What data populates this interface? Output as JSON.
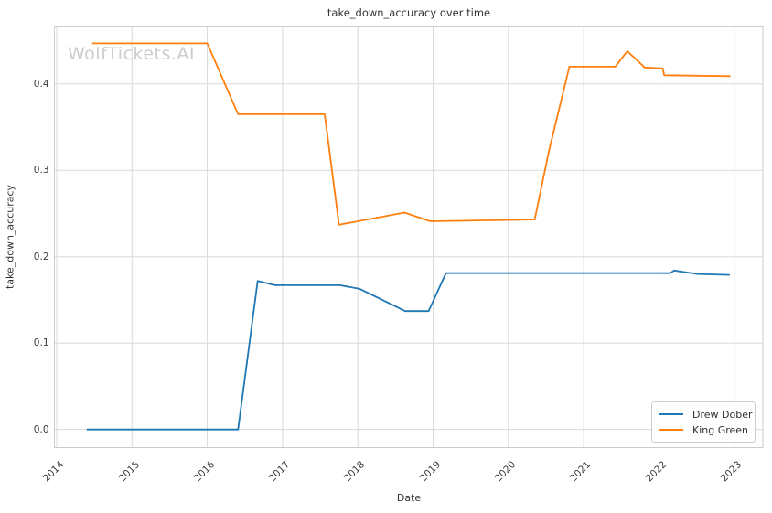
{
  "watermark": "WolfTickets.AI",
  "chart_data": {
    "type": "line",
    "title": "take_down_accuracy over time",
    "xlabel": "Date",
    "ylabel": "take_down_accuracy",
    "xlim": [
      2013.97,
      2023.38
    ],
    "ylim": [
      -0.021,
      0.467
    ],
    "x_ticks": [
      2014,
      2015,
      2016,
      2017,
      2018,
      2019,
      2020,
      2021,
      2022,
      2023
    ],
    "y_ticks": [
      0.0,
      0.1,
      0.2,
      0.3,
      0.4
    ],
    "grid": true,
    "legend_position": "lower right",
    "colors": {
      "grid": "#d9d9d9",
      "spine": "#cccccc",
      "text": "#3a3a3a",
      "watermark": "#cccccc",
      "background": "#ffffff"
    },
    "series": [
      {
        "name": "Drew Dober",
        "color": "#1f77b4",
        "points": [
          [
            2014.4,
            0.0
          ],
          [
            2016.41,
            0.0
          ],
          [
            2016.67,
            0.172
          ],
          [
            2016.9,
            0.167
          ],
          [
            2017.76,
            0.167
          ],
          [
            2018.02,
            0.163
          ],
          [
            2018.63,
            0.137
          ],
          [
            2018.94,
            0.137
          ],
          [
            2019.17,
            0.181
          ],
          [
            2022.15,
            0.181
          ],
          [
            2022.2,
            0.184
          ],
          [
            2022.51,
            0.18
          ],
          [
            2022.94,
            0.179
          ]
        ]
      },
      {
        "name": "King Green",
        "color": "#ff7f0e",
        "points": [
          [
            2014.47,
            0.447
          ],
          [
            2016.0,
            0.447
          ],
          [
            2016.41,
            0.365
          ],
          [
            2017.56,
            0.365
          ],
          [
            2017.75,
            0.237
          ],
          [
            2018.62,
            0.251
          ],
          [
            2018.96,
            0.241
          ],
          [
            2020.35,
            0.243
          ],
          [
            2020.54,
            0.323
          ],
          [
            2020.81,
            0.42
          ],
          [
            2021.42,
            0.42
          ],
          [
            2021.58,
            0.438
          ],
          [
            2021.81,
            0.419
          ],
          [
            2022.05,
            0.418
          ],
          [
            2022.07,
            0.41
          ],
          [
            2022.95,
            0.409
          ]
        ]
      }
    ]
  }
}
